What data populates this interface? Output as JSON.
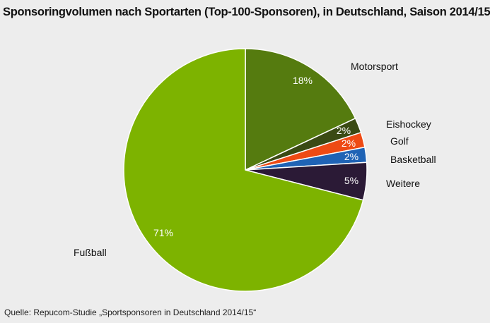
{
  "chart_data": {
    "type": "pie",
    "title": "Sponsoringvolumen nach Sportarten (Top-100-Sponsoren), in Deutschland, Saison 2014/15",
    "slices": [
      {
        "label": "Motorsport",
        "value": 18,
        "value_label": "18%",
        "color": "#557b0f"
      },
      {
        "label": "Eishockey",
        "value": 2,
        "value_label": "2%",
        "color": "#3a4a14"
      },
      {
        "label": "Golf",
        "value": 2,
        "value_label": "2%",
        "color": "#ee4a14"
      },
      {
        "label": "Basketball",
        "value": 2,
        "value_label": "2%",
        "color": "#1f63b5"
      },
      {
        "label": "Weitere",
        "value": 5,
        "value_label": "5%",
        "color": "#2b1a36"
      },
      {
        "label": "Fußball",
        "value": 71,
        "value_label": "71%",
        "color": "#7db300"
      }
    ]
  },
  "source": "Quelle: Repucom-Studie „Sportsponsoren in Deutschland 2014/15“"
}
